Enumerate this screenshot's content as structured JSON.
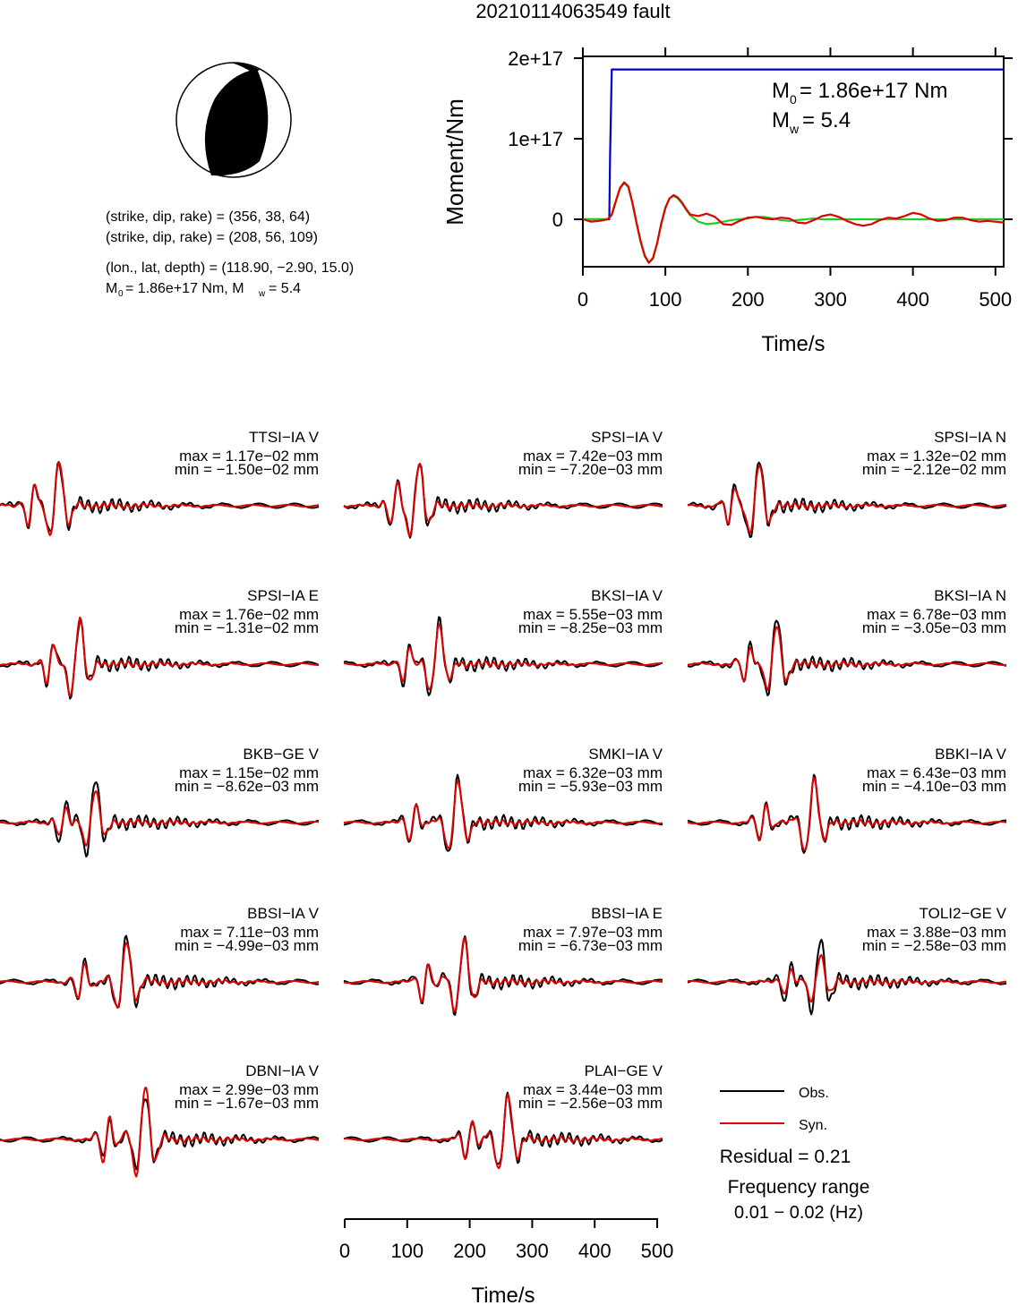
{
  "title": "20210114063549 fault",
  "colors": {
    "obs": "#000000",
    "syn": "#e00000",
    "moment": "#0000cc",
    "fit": "#22cc22"
  },
  "info": {
    "line1": "(strike, dip, rake) = (356, 38, 64)",
    "line2": "(strike, dip, rake) = (208, 56, 109)",
    "line3": "(lon., lat, depth) = (118.90, −2.90, 15.0)",
    "m0_text": "= 1.86e+17 Nm, M",
    "mw_value": "= 5.4"
  },
  "moment_chart": {
    "ylabel": "Moment/Nm",
    "xlabel": "Time/s",
    "ytick_labels": [
      "2e+17",
      "1e+17",
      "0"
    ],
    "xtick_labels": [
      "0",
      "100",
      "200",
      "300",
      "400",
      "500"
    ],
    "m0_label": "= 1.86e+17 Nm",
    "mw_label": "= 5.4"
  },
  "bottom_axis": {
    "xlabel": "Time/s",
    "xtick_labels": [
      "0",
      "100",
      "200",
      "300",
      "400",
      "500"
    ]
  },
  "legend": {
    "obs": "Obs.",
    "syn": "Syn.",
    "residual": "Residual = 0.21",
    "freq_label": "Frequency range",
    "freq_value": "0.01 − 0.02 (Hz)"
  },
  "chart_data": [
    {
      "type": "line",
      "title": "",
      "xlabel": "Time/s",
      "ylabel": "Moment/Nm",
      "xlim": [
        0,
        510
      ],
      "ylim": [
        -5.5e+16,
        2.05e+17
      ],
      "series": [
        {
          "x": [
            0,
            32,
            33,
            35,
            510
          ],
          "y": [
            0,
            0,
            8e+16,
            1.86e+17,
            1.86e+17
          ]
        },
        {
          "x": [
            0,
            10,
            20,
            30,
            35,
            40,
            45,
            50,
            55,
            60,
            65,
            70,
            75,
            80,
            85,
            90,
            95,
            100,
            105,
            110,
            115,
            120,
            125,
            130,
            140,
            150,
            160,
            170,
            180,
            190,
            200,
            210,
            220,
            230,
            240,
            250,
            260,
            270,
            280,
            290,
            300,
            310,
            320,
            330,
            340,
            350,
            360,
            370,
            380,
            390,
            400,
            410,
            420,
            430,
            440,
            450,
            460,
            470,
            480,
            490,
            500,
            510
          ],
          "y": [
            0,
            0,
            0,
            0,
            5000000000000000.0,
            2.2e+16,
            3.8e+16,
            4.5e+16,
            4e+16,
            2e+16,
            -5000000000000000.0,
            -2.8e+16,
            -4.6e+16,
            -5.4e+16,
            -4.9e+16,
            -3e+16,
            -5000000000000000.0,
            1.5e+16,
            2.6e+16,
            2.9e+16,
            2.6e+16,
            2e+16,
            1.2e+16,
            5000000000000000.0,
            -3000000000000000.0,
            -6000000000000000.0,
            -5000000000000000.0,
            -3000000000000000.0,
            -1000000000000000.0,
            0,
            1000000000000000.0,
            3000000000000000.0,
            3000000000000000.0,
            1000000000000000.0,
            -1000000000000000.0,
            -2000000000000000.0,
            -1000000000000000.0,
            0,
            1000000000000000.0,
            0,
            0,
            0,
            0,
            0,
            0,
            0,
            0,
            0,
            0,
            0,
            0,
            0,
            0,
            0,
            0,
            0,
            0,
            0,
            0,
            0,
            0,
            0
          ]
        },
        {
          "x": [
            0,
            10,
            20,
            30,
            35,
            40,
            45,
            50,
            55,
            60,
            65,
            70,
            75,
            80,
            85,
            90,
            95,
            100,
            105,
            110,
            115,
            120,
            125,
            130,
            140,
            150,
            160,
            170,
            180,
            190,
            200,
            210,
            220,
            230,
            240,
            250,
            260,
            270,
            280,
            290,
            300,
            310,
            320,
            330,
            340,
            350,
            360,
            370,
            380,
            390,
            400,
            410,
            420,
            430,
            440,
            450,
            460,
            470,
            480,
            490,
            500,
            510
          ],
          "y": [
            0,
            -3000000000000000.0,
            -2000000000000000.0,
            0,
            6000000000000000.0,
            2.3e+16,
            3.9e+16,
            4.6e+16,
            4.1e+16,
            2.1e+16,
            -4000000000000000.0,
            -2.7e+16,
            -4.5e+16,
            -5.4e+16,
            -4.8e+16,
            -3e+16,
            -6000000000000000.0,
            1.4e+16,
            2.6e+16,
            3e+16,
            2.7e+16,
            2.1e+16,
            1.3e+16,
            6000000000000000.0,
            4000000000000000.0,
            7000000000000000.0,
            3000000000000000.0,
            -6000000000000000.0,
            -7000000000000000.0,
            -2000000000000000.0,
            2000000000000000.0,
            3000000000000000.0,
            1000000000000000.0,
            0,
            2000000000000000.0,
            1000000000000000.0,
            -4000000000000000.0,
            -5000000000000000.0,
            -1000000000000000.0,
            4000000000000000.0,
            6000000000000000.0,
            3000000000000000.0,
            -2000000000000000.0,
            -6000000000000000.0,
            -8000000000000000.0,
            -6000000000000000.0,
            -1000000000000000.0,
            2000000000000000.0,
            1000000000000000.0,
            4000000000000000.0,
            8000000000000000.0,
            6000000000000000.0,
            1000000000000000.0,
            -2000000000000000.0,
            -1000000000000000.0,
            2000000000000000.0,
            2000000000000000.0,
            -1000000000000000.0,
            -3000000000000000.0,
            -2000000000000000.0,
            -3000000000000000.0,
            -4000000000000000.0
          ]
        }
      ]
    },
    {
      "type": "line",
      "title": "",
      "xlabel": "Time/s",
      "xlim": [
        0,
        510
      ],
      "panels": [
        {
          "label": "TTSI−IA V",
          "max": "max = 1.17e−02 mm",
          "min": "min = −1.50e−02 mm",
          "p": [
            50,
            92
          ],
          "amp": [
            1.0,
            1.0
          ]
        },
        {
          "label": "SPSI−IA V",
          "max": "max = 7.42e−03 mm",
          "min": "min = −7.20e−03 mm",
          "p": [
            80,
            118
          ],
          "amp": [
            1.0,
            0.95
          ]
        },
        {
          "label": "SPSI−IA N",
          "max": "max = 1.32e−02 mm",
          "min": "min = −2.12e−02 mm",
          "p": [
            70,
            112
          ],
          "amp": [
            1.0,
            0.9
          ]
        },
        {
          "label": "SPSI−IA E",
          "max": "max = 1.76e−02 mm",
          "min": "min = −1.31e−02 mm",
          "p": [
            80,
            125
          ],
          "amp": [
            1.0,
            1.0
          ]
        },
        {
          "label": "BKSI−IA V",
          "max": "max = 5.55e−03 mm",
          "min": "min = −8.25e−03 mm",
          "p": [
            100,
            150
          ],
          "amp": [
            1.0,
            0.85
          ]
        },
        {
          "label": "BKSI−IA N",
          "max": "max = 6.78e−03 mm",
          "min": "min = −3.05e−03 mm",
          "p": [
            95,
            140
          ],
          "amp": [
            1.0,
            0.85
          ]
        },
        {
          "label": "BKB−GE V",
          "max": "max = 1.15e−02 mm",
          "min": "min = −8.62e−03 mm",
          "p": [
            100,
            150
          ],
          "amp": [
            1.0,
            0.7
          ]
        },
        {
          "label": "SMKI−IA V",
          "max": "max = 6.32e−03 mm",
          "min": "min = −5.93e−03 mm",
          "p": [
            110,
            180
          ],
          "amp": [
            1.0,
            0.9
          ]
        },
        {
          "label": "BBKI−IA V",
          "max": "max = 6.43e−03 mm",
          "min": "min = −4.10e−03 mm",
          "p": [
            120,
            200
          ],
          "amp": [
            1.0,
            0.95
          ]
        },
        {
          "label": "BBSI−IA V",
          "max": "max = 7.11e−03 mm",
          "min": "min = −4.99e−03 mm",
          "p": [
            130,
            200
          ],
          "amp": [
            1.0,
            0.9
          ]
        },
        {
          "label": "BBSI−IA E",
          "max": "max = 7.97e−03 mm",
          "min": "min = −6.73e−03 mm",
          "p": [
            130,
            190
          ],
          "amp": [
            1.0,
            0.95
          ]
        },
        {
          "label": "TOLI2−GE V",
          "max": "max = 3.88e−03 mm",
          "min": "min = −2.58e−03 mm",
          "p": [
            160,
            210
          ],
          "amp": [
            1.0,
            0.6
          ]
        },
        {
          "label": "DBNI−IA V",
          "max": "max = 2.99e−03 mm",
          "min": "min = −1.67e−03 mm",
          "p": [
            170,
            230
          ],
          "amp": [
            1.0,
            1.2
          ]
        },
        {
          "label": "PLAI−GE V",
          "max": "max = 3.44e−03 mm",
          "min": "min = −2.56e−03 mm",
          "p": [
            200,
            260
          ],
          "amp": [
            1.0,
            1.0
          ]
        }
      ]
    }
  ]
}
